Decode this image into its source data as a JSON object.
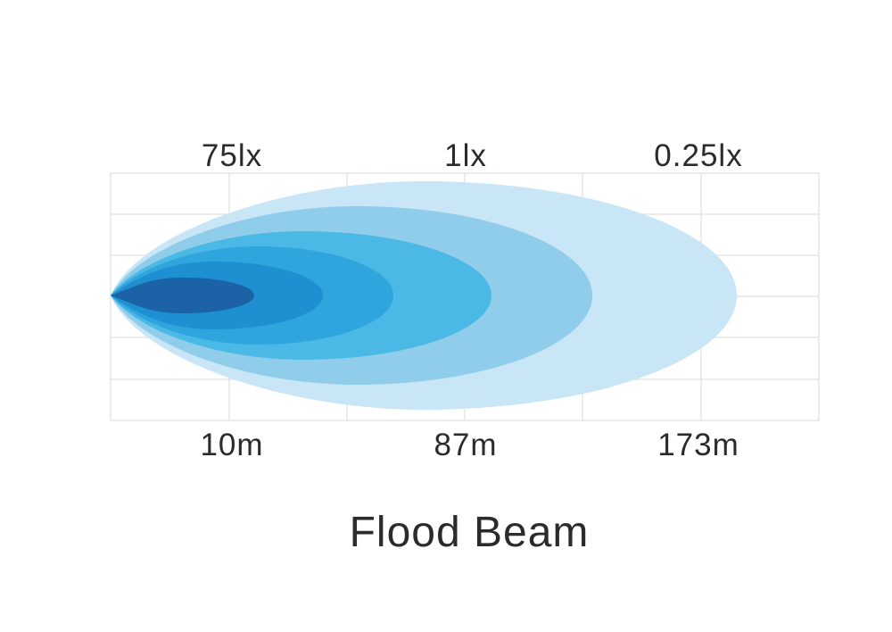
{
  "title": "Flood Beam",
  "lux_labels": [
    "75lx",
    "1lx",
    "0.25lx"
  ],
  "distance_labels": [
    "10m",
    "87m",
    "173m"
  ],
  "colors": {
    "grid": "#d9d9d9",
    "zones": [
      "#c8e6f5",
      "#8fcdea",
      "#4bb9e5",
      "#2fa4dd",
      "#1e8fd0",
      "#1b62a6"
    ]
  }
}
